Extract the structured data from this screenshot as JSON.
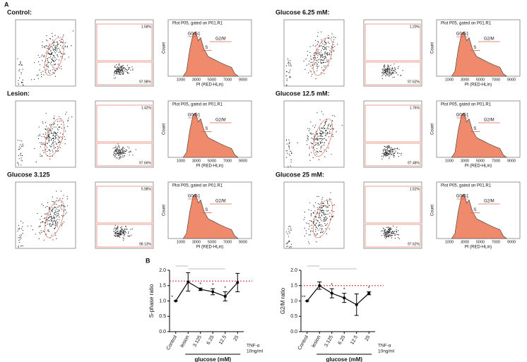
{
  "panel_a": {
    "label": "A",
    "histogram": {
      "title": "Plot P05, gated on P01.R1",
      "x_label": "PI (RED-HLin)",
      "y_label": "Count",
      "gates": [
        "G0/G1",
        "S",
        "G2/M"
      ],
      "x_ticks": [
        1000,
        3000,
        5000,
        7000,
        9000
      ]
    },
    "groups": [
      {
        "title": "Control:",
        "gate_percentages": [
          "1.58%",
          "97.98%"
        ]
      },
      {
        "title": "Lesion:",
        "gate_percentages": [
          "1.42%",
          "97.66%"
        ]
      },
      {
        "title": "Glucose 3.125",
        "gate_percentages": [
          "5.98%",
          "98.13%"
        ]
      },
      {
        "title": "Glucose 6.25 mM:",
        "gate_percentages": [
          "1.20%",
          "97.62%"
        ]
      },
      {
        "title": "Glucose 12.5 mM:",
        "gate_percentages": [
          "1.76%",
          "97.48%"
        ]
      },
      {
        "title": "Glucose 25 mM:",
        "gate_percentages": [
          "1.52%",
          "97.62%"
        ]
      }
    ]
  },
  "panel_b": {
    "label": "B"
  },
  "chart_data": [
    {
      "type": "line",
      "y_label": "S-phase ratio",
      "x_label": "glucose (mM)",
      "annotation": [
        "TNF-α",
        "10ng/ml"
      ],
      "categories": [
        "Control",
        "lesion",
        "3.125",
        "6.25",
        "12.5",
        "25"
      ],
      "series": [
        {
          "color": "#000000",
          "values": [
            1.0,
            1.62,
            1.38,
            1.3,
            1.15,
            1.6
          ],
          "errors": [
            0,
            0.3,
            0.04,
            0.1,
            0.15,
            0.3
          ],
          "significance": [
            "*",
            null,
            "*",
            "*",
            "*",
            null
          ]
        }
      ],
      "ylim": [
        0,
        2
      ],
      "yticks": [
        {
          "value": 0,
          "label": "0.0"
        },
        0.5,
        {
          "value": 1,
          "label": "1.0"
        },
        1.5,
        {
          "value": 2,
          "label": "2.0"
        }
      ],
      "reference_line": {
        "value": 1.65,
        "color": "#d62728"
      }
    },
    {
      "type": "line",
      "y_label": "G2/M ratio",
      "x_label": "glucose (mM)",
      "annotation": [
        "TNF-α",
        "10ng/ml"
      ],
      "categories": [
        "Control",
        "lesion",
        "3.125",
        "6.25",
        "12.5",
        "25"
      ],
      "series": [
        {
          "color": "#000000",
          "values": [
            1.0,
            1.5,
            1.25,
            1.1,
            0.88,
            1.25
          ],
          "errors": [
            0,
            0.12,
            0.15,
            0.15,
            0.35,
            0.05
          ],
          "significance": [
            "**",
            null,
            "*",
            "*",
            null,
            "*"
          ]
        }
      ],
      "ylim": [
        0,
        2
      ],
      "yticks": [
        {
          "value": 0,
          "label": "0.0"
        },
        0.5,
        {
          "value": 1,
          "label": "1.0"
        },
        1.5,
        {
          "value": 2,
          "label": "2.0"
        }
      ],
      "reference_line": {
        "value": 1.5,
        "color": "#d62728"
      }
    }
  ]
}
